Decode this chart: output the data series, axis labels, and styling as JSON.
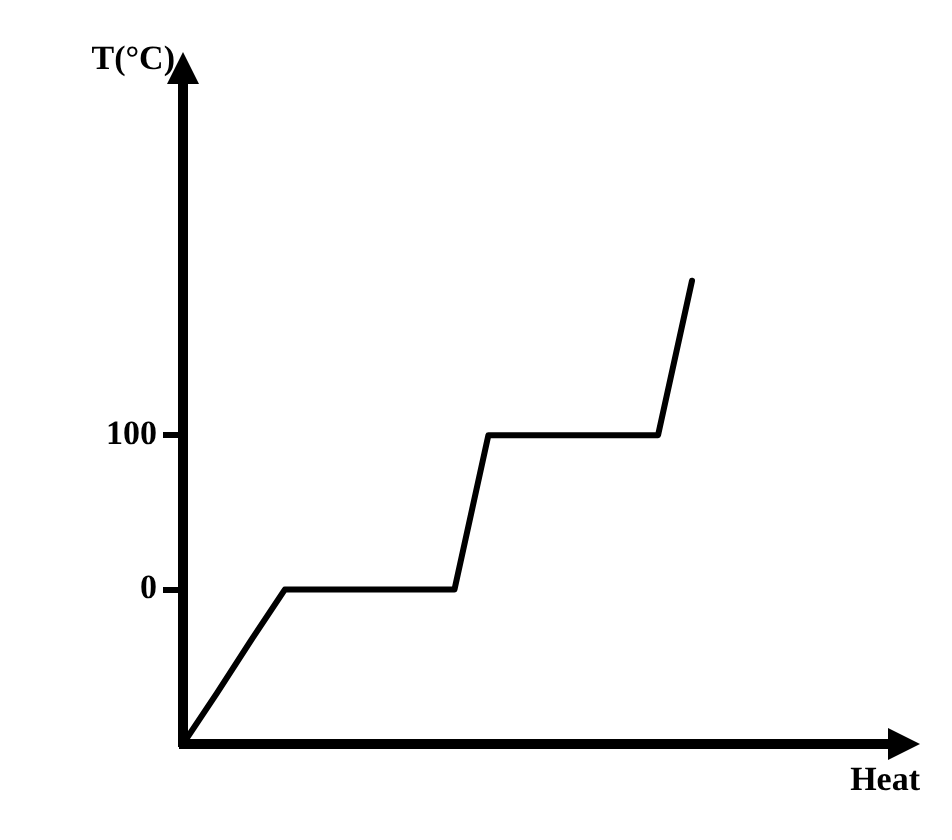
{
  "chart_data": {
    "type": "line",
    "xlabel": "Heat",
    "ylabel": "T(°C)",
    "categories": [
      null,
      null,
      null,
      null,
      null,
      null,
      null,
      null,
      null,
      null,
      null,
      null,
      null,
      null,
      null,
      null
    ],
    "values": [
      -100,
      -67,
      -33,
      0,
      0,
      0,
      0,
      0,
      0,
      100,
      100,
      100,
      100,
      100,
      100,
      200
    ],
    "color": "#000000",
    "ylim": [
      -100,
      330
    ],
    "yticks": [
      0,
      100
    ],
    "tick_labels": "y"
  }
}
